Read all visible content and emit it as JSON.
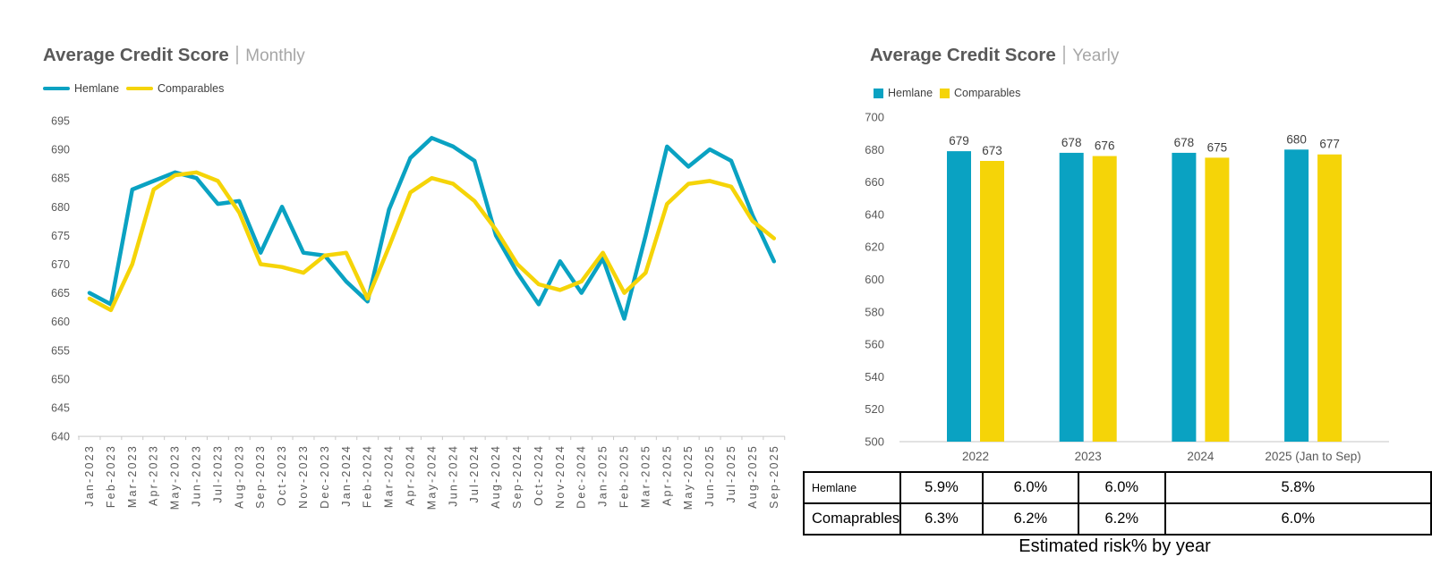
{
  "colors": {
    "hemlane": "#0AA2C2",
    "comparables": "#F5D408",
    "title_text": "#595959",
    "subtitle_text": "#A6A6A6",
    "axis_text": "#595959",
    "axis_line": "#D9D9D9",
    "data_label_text": "#404040",
    "table_border": "#000000"
  },
  "chart_data": [
    {
      "type": "line",
      "title": "Average Credit Score",
      "subtitle": "Monthly",
      "legend_position": "top-left",
      "grid": false,
      "ylim": [
        640,
        695
      ],
      "ytick_step": 5,
      "yticks": [
        640,
        645,
        650,
        655,
        660,
        665,
        670,
        675,
        680,
        685,
        690,
        695
      ],
      "categories": [
        "Jan-2023",
        "Feb-2023",
        "Mar-2023",
        "Apr-2023",
        "May-2023",
        "Jun-2023",
        "Jul-2023",
        "Aug-2023",
        "Sep-2023",
        "Oct-2023",
        "Nov-2023",
        "Dec-2023",
        "Jan-2024",
        "Feb-2024",
        "Mar-2024",
        "Apr-2024",
        "May-2024",
        "Jun-2024",
        "Jul-2024",
        "Aug-2024",
        "Sep-2024",
        "Oct-2024",
        "Nov-2024",
        "Dec-2024",
        "Jan-2025",
        "Feb-2025",
        "Mar-2025",
        "Apr-2025",
        "May-2025",
        "Jun-2025",
        "Jul-2025",
        "Aug-2025",
        "Sep-2025"
      ],
      "series": [
        {
          "name": "Hemlane",
          "color": "#0AA2C2",
          "values": [
            665,
            663,
            683,
            684.5,
            686,
            685,
            680.5,
            681,
            672,
            680,
            672,
            671.5,
            667,
            663.5,
            679.5,
            688.5,
            692,
            690.5,
            688,
            675,
            668.5,
            663,
            670.5,
            665,
            671,
            660.5,
            675,
            690.5,
            687,
            690,
            688,
            678.5,
            670.5
          ]
        },
        {
          "name": "Comparables",
          "color": "#F5D408",
          "values": [
            664,
            662,
            670,
            683,
            685.5,
            686,
            684.5,
            679,
            670,
            669.5,
            668.5,
            671.5,
            672,
            664,
            673,
            682.5,
            685,
            684,
            681,
            676,
            670,
            666.5,
            665.5,
            667,
            672,
            665,
            668.5,
            680.5,
            684,
            684.5,
            683.5,
            677.5,
            674.5
          ]
        }
      ]
    },
    {
      "type": "bar",
      "title": "Average Credit Score",
      "subtitle": "Yearly",
      "legend_position": "top-left",
      "grid": false,
      "data_labels": true,
      "ylim": [
        500,
        700
      ],
      "ytick_step": 20,
      "yticks": [
        500,
        520,
        540,
        560,
        580,
        600,
        620,
        640,
        660,
        680,
        700
      ],
      "categories": [
        "2022",
        "2023",
        "2024",
        "2025 (Jan to Sep)"
      ],
      "series": [
        {
          "name": "Hemlane",
          "color": "#0AA2C2",
          "values": [
            679,
            678,
            678,
            680
          ]
        },
        {
          "name": "Comparables",
          "color": "#F5D408",
          "values": [
            673,
            676,
            675,
            677
          ]
        }
      ]
    },
    {
      "type": "table",
      "caption": "Estimated risk% by year",
      "rows": [
        {
          "label": "Hemlane",
          "values": [
            "5.9%",
            "6.0%",
            "6.0%",
            "5.8%"
          ]
        },
        {
          "label": "Comaprables",
          "values": [
            "6.3%",
            "6.2%",
            "6.2%",
            "6.0%"
          ]
        }
      ]
    }
  ]
}
